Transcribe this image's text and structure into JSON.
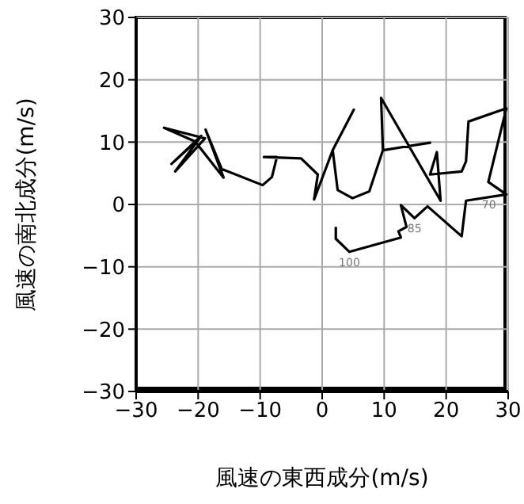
{
  "chart_data": {
    "type": "line",
    "xlabel": "風速の東西成分(m/s)",
    "ylabel": "風速の南北成分(m/s)",
    "xlim": [
      -30,
      30
    ],
    "ylim": [
      -30,
      30
    ],
    "xticks": [
      {
        "value": -30,
        "label": "−30"
      },
      {
        "value": -20,
        "label": "−20"
      },
      {
        "value": -10,
        "label": "−10"
      },
      0,
      10,
      20,
      30
    ],
    "yticks": [
      {
        "value": -30,
        "label": "−30"
      },
      {
        "value": -20,
        "label": "−20"
      },
      {
        "value": -10,
        "label": "−10"
      },
      0,
      10,
      20,
      30
    ],
    "grid": true,
    "marker": "none",
    "line_style": "solid",
    "series": [
      {
        "color": "#000000",
        "x": [
          2.2,
          2.2,
          4.4,
          12.7,
          12.3,
          13.6,
          12.7,
          14.9,
          17.0,
          22.5,
          23.2,
          29.7,
          26.8,
          29.7,
          23.6,
          23.2,
          22.5,
          17.4,
          18.5,
          19.1,
          9.5,
          9.8,
          17.4,
          9.8,
          7.6,
          4.9,
          2.5,
          1.7,
          5.1,
          1.7,
          -1.3,
          -0.7,
          -3.4,
          -9.4,
          -7.3,
          -8.1,
          -9.6,
          -16.2,
          -18.8,
          -15.9,
          -20.5,
          -25.5,
          -18.9,
          -23.7,
          -19.5,
          -24.3,
          -21.0
        ],
        "values": [
          -3.6,
          -5.5,
          -7.6,
          -5.3,
          -4.3,
          -3.6,
          -0.1,
          -2.2,
          -0.3,
          -5.1,
          0.6,
          1.6,
          3.6,
          15.4,
          13.3,
          6.9,
          5.3,
          4.8,
          8.4,
          0.6,
          17.1,
          8.7,
          9.9,
          8.7,
          2.1,
          1.0,
          2.3,
          8.7,
          15.2,
          8.7,
          0.8,
          4.8,
          7.4,
          7.6,
          7.6,
          4.4,
          3.1,
          5.7,
          12.0,
          4.3,
          10.1,
          12.3,
          10.6,
          5.3,
          11.0,
          6.5,
          9.5
        ]
      }
    ],
    "annotations": [
      {
        "text": "100",
        "x": 4.4,
        "y": -7.6
      },
      {
        "text": "85",
        "x": 14.9,
        "y": -2.2
      },
      {
        "text": "70",
        "x": 29.7,
        "y": 1.6
      }
    ]
  }
}
